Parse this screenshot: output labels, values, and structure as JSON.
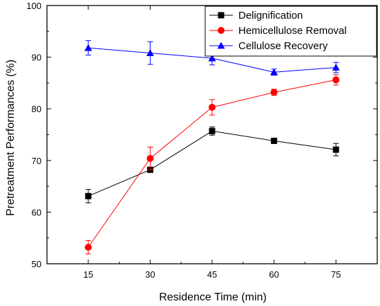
{
  "chart_data": {
    "type": "line",
    "xlabel": "Residence Time (min)",
    "ylabel": "Pretreatment Performances (%)",
    "xlim": [
      5,
      85
    ],
    "ylim": [
      50,
      100
    ],
    "xticks": [
      15,
      30,
      45,
      60,
      75
    ],
    "yticks": [
      50,
      60,
      70,
      80,
      90,
      100
    ],
    "grid": false,
    "legend_position": "top-right",
    "x": [
      15,
      30,
      45,
      60,
      75
    ],
    "series": [
      {
        "name": "Delignification",
        "marker": "square",
        "color": "#000000",
        "values": [
          63.1,
          68.2,
          75.7,
          73.8,
          72.1
        ],
        "errors": [
          1.3,
          0.5,
          0.8,
          0.3,
          1.2
        ]
      },
      {
        "name": "Hemicellulose Removal",
        "marker": "circle",
        "color": "#ff0000",
        "values": [
          53.2,
          70.4,
          80.3,
          83.2,
          85.6
        ],
        "errors": [
          1.3,
          2.2,
          1.5,
          0.6,
          1.0
        ]
      },
      {
        "name": "Cellulose Recovery",
        "marker": "triangle",
        "color": "#0000ff",
        "values": [
          91.8,
          90.8,
          89.8,
          87.1,
          88.0
        ],
        "errors": [
          1.4,
          2.2,
          1.3,
          0.6,
          1.0
        ]
      }
    ]
  }
}
